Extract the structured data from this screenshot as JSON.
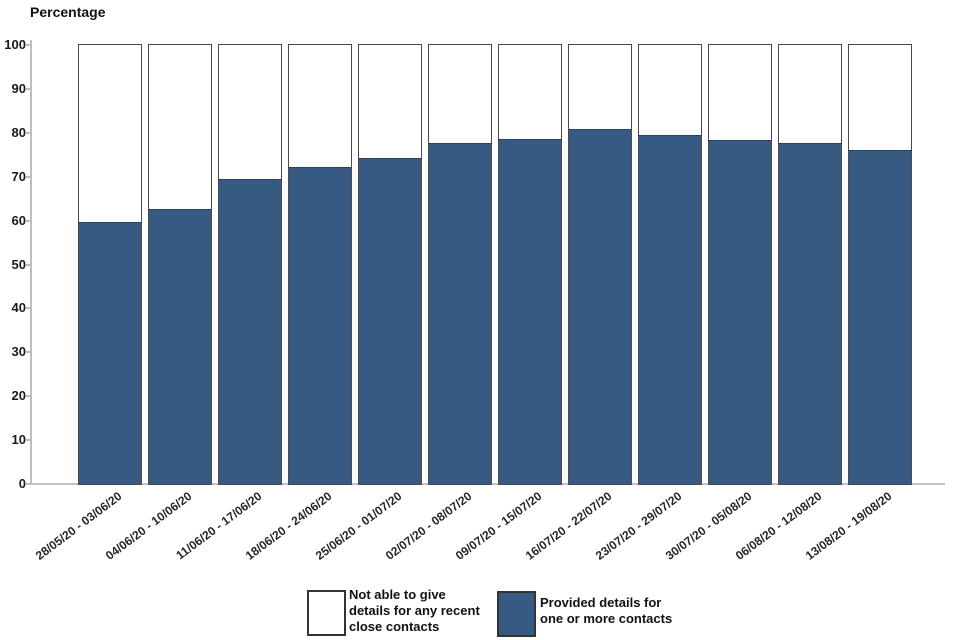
{
  "title": "Percentage",
  "chart_data": {
    "type": "bar",
    "stacked": true,
    "title": "",
    "xlabel": "",
    "ylabel": "Percentage",
    "ylim": [
      0,
      100
    ],
    "yticks": [
      0,
      10,
      20,
      30,
      40,
      50,
      60,
      70,
      80,
      90,
      100
    ],
    "grid": false,
    "legend_position": "bottom",
    "categories": [
      "28/05/20 - 03/06/20",
      "04/06/20 - 10/06/20",
      "11/06/20 - 17/06/20",
      "18/06/20 - 24/06/20",
      "25/06/20 - 01/07/20",
      "02/07/20 - 08/07/20",
      "09/07/20 - 15/07/20",
      "16/07/20 - 22/07/20",
      "23/07/20 - 29/07/20",
      "30/07/20 - 05/08/20",
      "06/08/20 - 12/08/20",
      "13/08/20 - 19/08/20"
    ],
    "series": [
      {
        "name": "Provided details for one or more contacts",
        "color": "#365a82",
        "values": [
          59.7,
          62.7,
          69.5,
          72.2,
          74.2,
          77.6,
          78.5,
          80.9,
          79.4,
          78.4,
          77.6,
          76.1
        ]
      },
      {
        "name": "Not able to give details for any recent close contacts",
        "color": "#ffffff",
        "values": [
          40.3,
          37.3,
          30.5,
          27.8,
          25.8,
          22.4,
          21.5,
          19.1,
          20.6,
          21.6,
          22.4,
          23.9
        ]
      }
    ]
  },
  "legend": {
    "not_able": {
      "label": "Not able to give\n details for any recent\nclose contacts",
      "color": "#ffffff"
    },
    "provided": {
      "label": "Provided details for\n one or more contacts",
      "color": "#365a82"
    }
  },
  "colors": {
    "bar_fill": "#365a82",
    "bar_border": "#4a4a4a",
    "segment_divider": "#152f52",
    "axis": "#bdbdbd",
    "text": "#1a1a1a"
  }
}
